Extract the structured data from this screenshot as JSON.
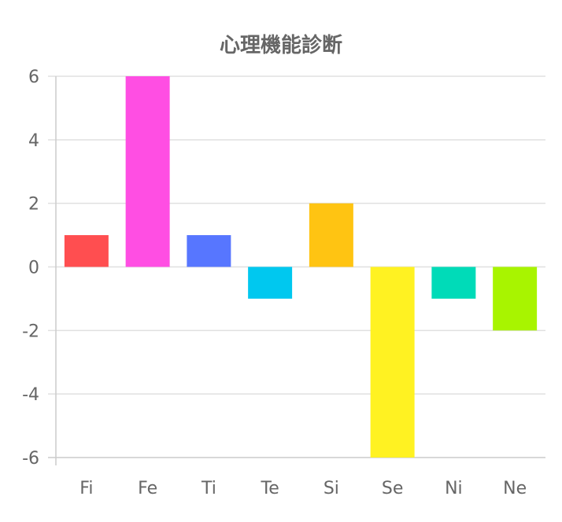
{
  "chart_data": {
    "type": "bar",
    "title": "心理機能診断",
    "categories": [
      "Fi",
      "Fe",
      "Ti",
      "Te",
      "Si",
      "Se",
      "Ni",
      "Ne"
    ],
    "values": [
      1,
      6,
      1,
      -1,
      2,
      -6,
      -1,
      -2
    ],
    "colors": [
      "#ff4e50",
      "#ff4ee3",
      "#5776ff",
      "#00c8ef",
      "#ffc412",
      "#fff222",
      "#00dbb8",
      "#a8f400"
    ],
    "ylim": [
      -6,
      6
    ],
    "yticks": [
      6,
      4,
      2,
      0,
      -2,
      -4,
      -6
    ],
    "grid": true,
    "legend": "none",
    "xlabel": "",
    "ylabel": ""
  },
  "style": {
    "text_color": "#666666",
    "grid_color": "#e0e0e0",
    "axis_color": "#cccccc"
  }
}
